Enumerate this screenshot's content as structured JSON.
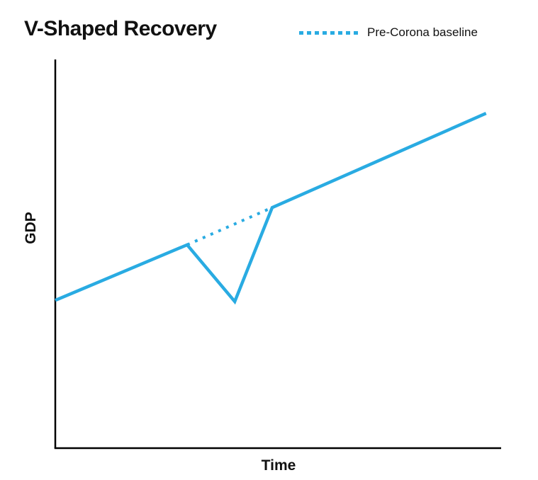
{
  "title": "V-Shaped Recovery",
  "legend": {
    "label": "Pre-Corona baseline"
  },
  "axes": {
    "y_label": "GDP",
    "x_label": "Time"
  },
  "colors": {
    "line": "#29ABE2",
    "axis": "#000000",
    "text": "#111111"
  },
  "chart_data": {
    "type": "line",
    "title": "V-Shaped Recovery",
    "xlabel": "Time",
    "ylabel": "GDP",
    "x_range": [
      0,
      100
    ],
    "y_range": [
      0,
      100
    ],
    "grid": false,
    "axis_tick_labels": "none",
    "legend_position": "top-right",
    "series": [
      {
        "name": "GDP",
        "style": "solid",
        "color": "#29ABE2",
        "points": [
          [
            0,
            38.1
          ],
          [
            29.9,
            52.4
          ],
          [
            40.7,
            37.8
          ],
          [
            49.2,
            62.0
          ],
          [
            97.7,
            86.3
          ]
        ]
      },
      {
        "name": "Pre-Corona baseline",
        "style": "dotted",
        "color": "#29ABE2",
        "points": [
          [
            29.9,
            52.4
          ],
          [
            49.2,
            62.0
          ]
        ]
      }
    ],
    "annotations": [
      "Solid line rises, dips sharply in a V shape, then recovers back to the dotted pre-crisis trend and continues rising"
    ]
  }
}
